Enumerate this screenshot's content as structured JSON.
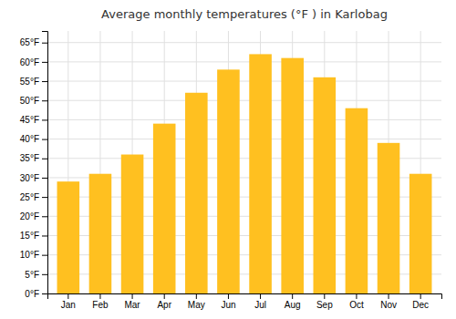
{
  "chart_data": {
    "type": "bar",
    "title": "Average monthly temperatures (°F ) in Karlobag",
    "categories": [
      "Jan",
      "Feb",
      "Mar",
      "Apr",
      "May",
      "Jun",
      "Jul",
      "Aug",
      "Sep",
      "Oct",
      "Nov",
      "Dec"
    ],
    "values": [
      29,
      31,
      36,
      44,
      52,
      58,
      62,
      61,
      56,
      48,
      39,
      31
    ],
    "color": "#FFC020",
    "ylim": [
      0,
      68
    ],
    "yticks": [
      {
        "value": 0,
        "label": "0°F"
      },
      {
        "value": 5,
        "label": "5°F"
      },
      {
        "value": 10,
        "label": "10°F"
      },
      {
        "value": 15,
        "label": "15°F"
      },
      {
        "value": 20,
        "label": "20°F"
      },
      {
        "value": 25,
        "label": "25°F"
      },
      {
        "value": 30,
        "label": "30°F"
      },
      {
        "value": 35,
        "label": "35°F"
      },
      {
        "value": 40,
        "label": "40°F"
      },
      {
        "value": 45,
        "label": "45°F"
      },
      {
        "value": 50,
        "label": "50°F"
      },
      {
        "value": 55,
        "label": "55°F"
      },
      {
        "value": 60,
        "label": "60°F"
      },
      {
        "value": 65,
        "label": "65°F"
      }
    ],
    "grid": true
  }
}
